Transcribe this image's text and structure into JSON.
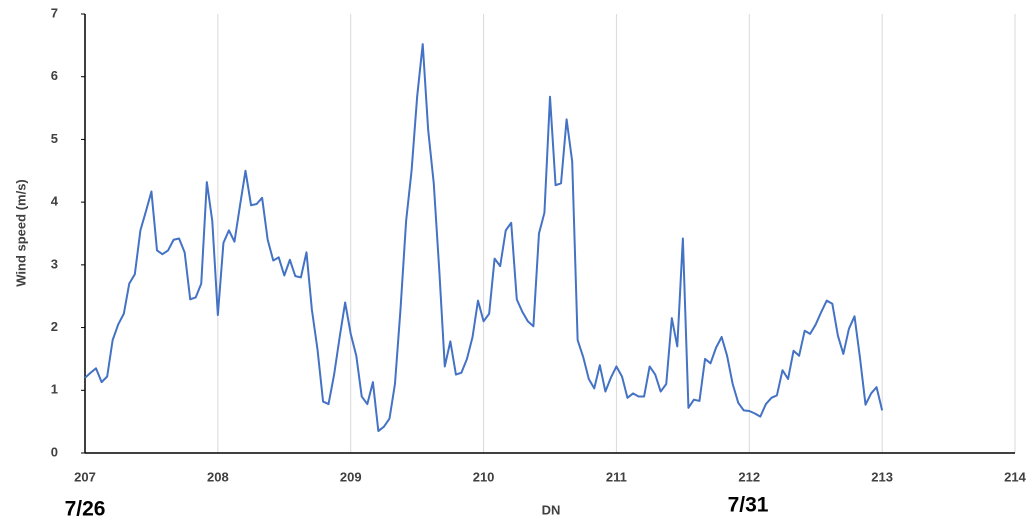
{
  "chart_data": {
    "type": "line",
    "x_label": "DN",
    "y_label": "Wind speed (m/s)",
    "annotations": [
      "7/26",
      "7/31"
    ],
    "xlim": [
      207,
      214
    ],
    "xticks": [
      207,
      208,
      209,
      210,
      211,
      212,
      213,
      214
    ],
    "ylim": [
      0,
      7
    ],
    "yticks": [
      0,
      1,
      2,
      3,
      4,
      5,
      6,
      7
    ],
    "grid": "x",
    "series": [
      {
        "name": "Wind speed",
        "color": "#4472c4",
        "x": [
          207,
          207.042,
          207.083,
          207.125,
          207.167,
          207.208,
          207.25,
          207.292,
          207.333,
          207.375,
          207.417,
          207.458,
          207.5,
          207.542,
          207.583,
          207.625,
          207.667,
          207.708,
          207.75,
          207.792,
          207.833,
          207.875,
          207.917,
          207.958,
          208,
          208.042,
          208.083,
          208.125,
          208.167,
          208.208,
          208.25,
          208.292,
          208.333,
          208.375,
          208.417,
          208.458,
          208.5,
          208.542,
          208.583,
          208.625,
          208.667,
          208.708,
          208.75,
          208.792,
          208.833,
          208.875,
          208.917,
          208.958,
          209,
          209.042,
          209.083,
          209.125,
          209.167,
          209.208,
          209.25,
          209.292,
          209.333,
          209.375,
          209.417,
          209.458,
          209.5,
          209.542,
          209.583,
          209.625,
          209.667,
          209.708,
          209.75,
          209.792,
          209.833,
          209.875,
          209.917,
          209.958,
          210,
          210.042,
          210.083,
          210.125,
          210.167,
          210.208,
          210.25,
          210.292,
          210.333,
          210.375,
          210.417,
          210.458,
          210.5,
          210.542,
          210.583,
          210.625,
          210.667,
          210.708,
          210.75,
          210.792,
          210.833,
          210.875,
          210.917,
          210.958,
          211,
          211.042,
          211.083,
          211.125,
          211.167,
          211.208,
          211.25,
          211.292,
          211.333,
          211.375,
          211.417,
          211.458,
          211.5,
          211.542,
          211.583,
          211.625,
          211.667,
          211.708,
          211.75,
          211.792,
          211.833,
          211.875,
          211.917,
          211.958,
          212,
          212.042,
          212.083,
          212.125,
          212.167,
          212.208,
          212.25,
          212.292,
          212.333,
          212.375,
          212.417,
          212.458,
          212.5,
          212.542,
          212.583,
          212.625,
          212.667,
          212.708,
          212.75,
          212.792,
          212.833,
          212.875,
          212.917,
          212.958,
          213
        ],
        "values": [
          1.2,
          1.28,
          1.35,
          1.13,
          1.22,
          1.8,
          2.05,
          2.22,
          2.7,
          2.85,
          3.55,
          3.85,
          4.17,
          3.23,
          3.17,
          3.23,
          3.4,
          3.42,
          3.2,
          2.45,
          2.48,
          2.7,
          4.32,
          3.7,
          2.2,
          3.35,
          3.55,
          3.37,
          3.95,
          4.5,
          3.95,
          3.97,
          4.07,
          3.4,
          3.07,
          3.12,
          2.83,
          3.08,
          2.82,
          2.8,
          3.2,
          2.28,
          1.65,
          0.82,
          0.78,
          1.25,
          1.85,
          2.4,
          1.9,
          1.55,
          0.9,
          0.78,
          1.13,
          0.35,
          0.42,
          0.55,
          1.1,
          2.3,
          3.7,
          4.5,
          5.68,
          6.52,
          5.15,
          4.3,
          2.9,
          1.38,
          1.78,
          1.25,
          1.28,
          1.5,
          1.85,
          2.43,
          2.1,
          2.22,
          3.1,
          2.98,
          3.55,
          3.67,
          2.45,
          2.25,
          2.1,
          2.02,
          3.5,
          3.83,
          5.68,
          4.27,
          4.3,
          5.32,
          4.65,
          1.8,
          1.53,
          1.18,
          1.03,
          1.4,
          0.98,
          1.2,
          1.38,
          1.22,
          0.88,
          0.95,
          0.9,
          0.9,
          1.38,
          1.25,
          0.98,
          1.1,
          2.15,
          1.7,
          3.42,
          0.72,
          0.85,
          0.83,
          1.5,
          1.43,
          1.68,
          1.85,
          1.55,
          1.1,
          0.8,
          0.68,
          0.67,
          0.63,
          0.58,
          0.78,
          0.88,
          0.92,
          1.32,
          1.18,
          1.63,
          1.55,
          1.95,
          1.9,
          2.05,
          2.25,
          2.43,
          2.38,
          1.87,
          1.58,
          1.98,
          2.18,
          1.52,
          0.77,
          0.95,
          1.05,
          0.68
        ]
      }
    ]
  }
}
